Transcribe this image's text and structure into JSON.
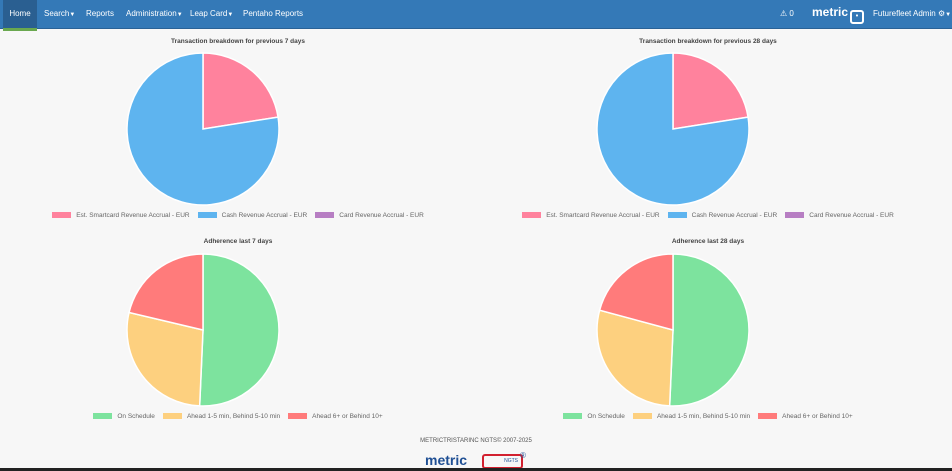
{
  "nav": {
    "items": [
      {
        "label": "Home",
        "active": true
      },
      {
        "label": "Search",
        "dropdown": true
      },
      {
        "label": "Reports"
      },
      {
        "label": "Administration",
        "dropdown": true
      },
      {
        "label": "Leap Card",
        "dropdown": true
      },
      {
        "label": "Pentaho Reports"
      }
    ],
    "alert_count": "0",
    "brand": "metric",
    "user": "Futurefleet Admin"
  },
  "chart_data": [
    {
      "type": "pie",
      "title": "Transaction breakdown for previous 7 days",
      "legend_position": "bottom",
      "labels": [
        "Est. Smartcard Revenue Accrual - EUR",
        "Cash Revenue Accrual - EUR",
        "Card Revenue Accrual - EUR"
      ],
      "values": [
        22.5,
        77.5,
        0
      ],
      "colors": [
        "#ff829d",
        "#5eb4ef",
        "#b77ec3"
      ]
    },
    {
      "type": "pie",
      "title": "Transaction breakdown for previous 28 days",
      "legend_position": "bottom",
      "labels": [
        "Est. Smartcard Revenue Accrual - EUR",
        "Cash Revenue Accrual - EUR",
        "Card Revenue Accrual - EUR"
      ],
      "values": [
        22.5,
        77.5,
        0
      ],
      "colors": [
        "#ff829d",
        "#5eb4ef",
        "#b77ec3"
      ]
    },
    {
      "type": "pie",
      "title": "Adherence last 7 days",
      "legend_position": "bottom",
      "labels": [
        "On Schedule",
        "Ahead 1-5 min, Behind 5-10 min",
        "Ahead 6+ or Behind 10+"
      ],
      "values": [
        50.7,
        28,
        21.3
      ],
      "colors": [
        "#7de39e",
        "#fdd07f",
        "#ff7b7b"
      ]
    },
    {
      "type": "pie",
      "title": "Adherence last 28 days",
      "legend_position": "bottom",
      "labels": [
        "On Schedule",
        "Ahead 1-5 min, Behind 5-10 min",
        "Ahead 6+ or Behind 10+"
      ],
      "values": [
        50.7,
        28.5,
        20.8
      ],
      "colors": [
        "#7de39e",
        "#fdd07f",
        "#ff7b7b"
      ]
    }
  ],
  "footer": {
    "copyright": "METRICTRISTARINC NGTS© 2007-2025",
    "logo_text": "metric",
    "logo_badge": "NGTS",
    "reg": "®"
  }
}
